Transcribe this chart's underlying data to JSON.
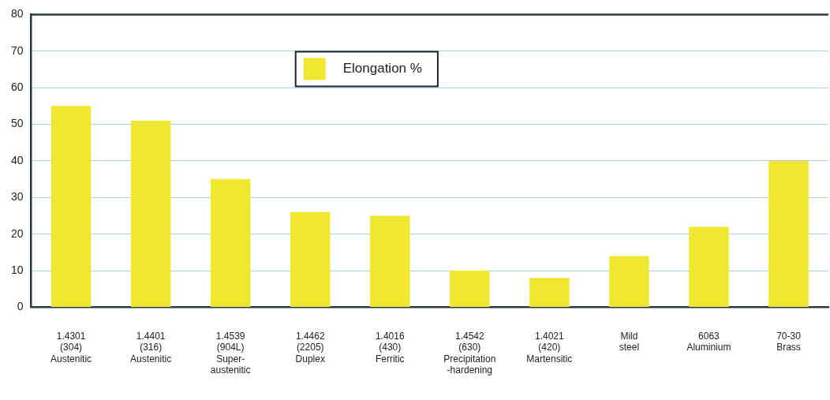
{
  "chart_data": {
    "type": "bar",
    "categories": [
      "1.4301\n(304)\nAustenitic",
      "1.4401\n(316)\nAustenitic",
      "1.4539\n(904L)\nSuper-\naustenitic",
      "1.4462\n(2205)\nDuplex",
      "1.4016\n(430)\nFerritic",
      "1.4542\n(630)\nPrecipitation\n-hardening",
      "1.4021\n(420)\nMartensitic",
      "Mild\nsteel",
      "6063\nAluminium",
      "70-30\nBrass"
    ],
    "series": [
      {
        "name": "Elongation %",
        "color": "#f0e830",
        "values": [
          55,
          51,
          35,
          26,
          25,
          10,
          8,
          14,
          22,
          40
        ]
      }
    ],
    "ylim": [
      0,
      80
    ],
    "yticks": [
      0,
      10,
      20,
      30,
      40,
      50,
      60,
      70,
      80
    ],
    "grid": "y",
    "legend": "top"
  }
}
